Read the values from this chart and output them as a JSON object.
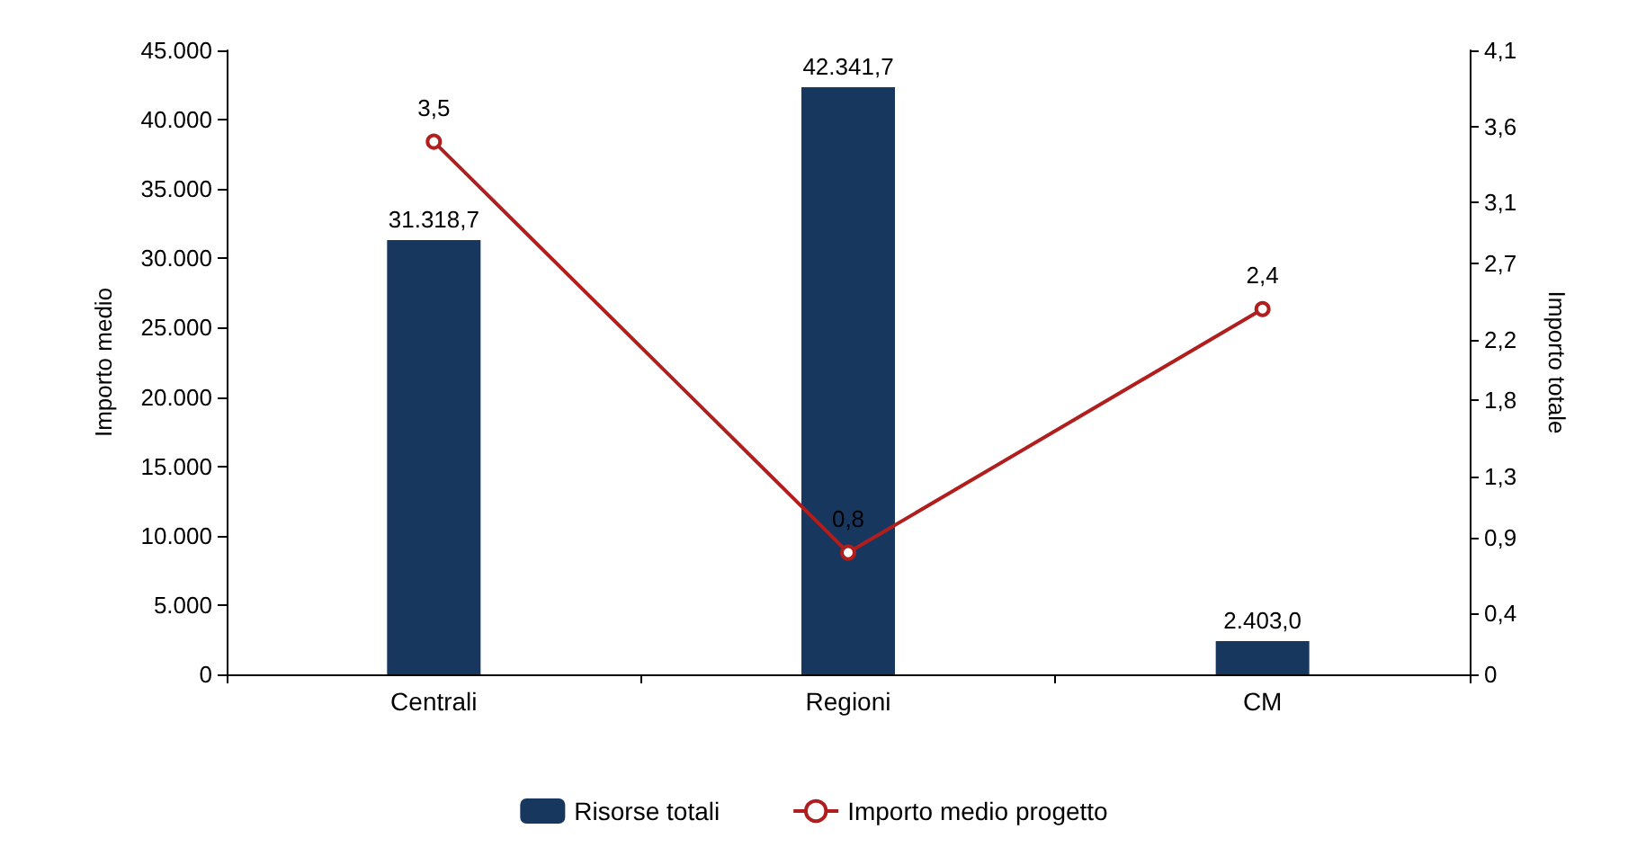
{
  "chart_data": {
    "type": "bar",
    "categories": [
      "Centrali",
      "Regioni",
      "CM"
    ],
    "series": [
      {
        "name": "Risorse totali",
        "color": "#17375e",
        "values": [
          31318.7,
          42341.7,
          2403.0
        ],
        "value_labels": [
          "31.318,7",
          "42.341,7",
          "2.403,0"
        ]
      },
      {
        "name": "Importo medio progetto",
        "type": "line",
        "axis": "y2",
        "color": "#b01e1e",
        "marker": "circle",
        "values": [
          3.5,
          0.8,
          2.4
        ],
        "value_labels": [
          "3,5",
          "0,8",
          "2,4"
        ]
      }
    ],
    "ylabel": "Importo medio",
    "y2label": "Importo totale",
    "ylim": [
      0,
      45000
    ],
    "yticks": [
      {
        "value": 0,
        "label": "0"
      },
      {
        "value": 5000,
        "label": "5.000"
      },
      {
        "value": 10000,
        "label": "10.000"
      },
      {
        "value": 15000,
        "label": "15.000"
      },
      {
        "value": 20000,
        "label": "20.000"
      },
      {
        "value": 25000,
        "label": "25.000"
      },
      {
        "value": 30000,
        "label": "30.000"
      },
      {
        "value": 35000,
        "label": "35.000"
      },
      {
        "value": 40000,
        "label": "40.000"
      },
      {
        "value": 45000,
        "label": "45.000"
      }
    ],
    "y2lim": [
      0,
      4.1
    ],
    "y2ticks": [
      {
        "value": 0,
        "label": "0"
      },
      {
        "value": 0.4,
        "label": "0,4"
      },
      {
        "value": 0.9,
        "label": "0,9"
      },
      {
        "value": 1.3,
        "label": "1,3"
      },
      {
        "value": 1.8,
        "label": "1,8"
      },
      {
        "value": 2.2,
        "label": "2,2"
      },
      {
        "value": 2.7,
        "label": "2,7"
      },
      {
        "value": 3.1,
        "label": "3,1"
      },
      {
        "value": 3.6,
        "label": "3,6"
      },
      {
        "value": 4.1,
        "label": "4,1"
      }
    ],
    "legend": "bottom",
    "grid": false
  }
}
